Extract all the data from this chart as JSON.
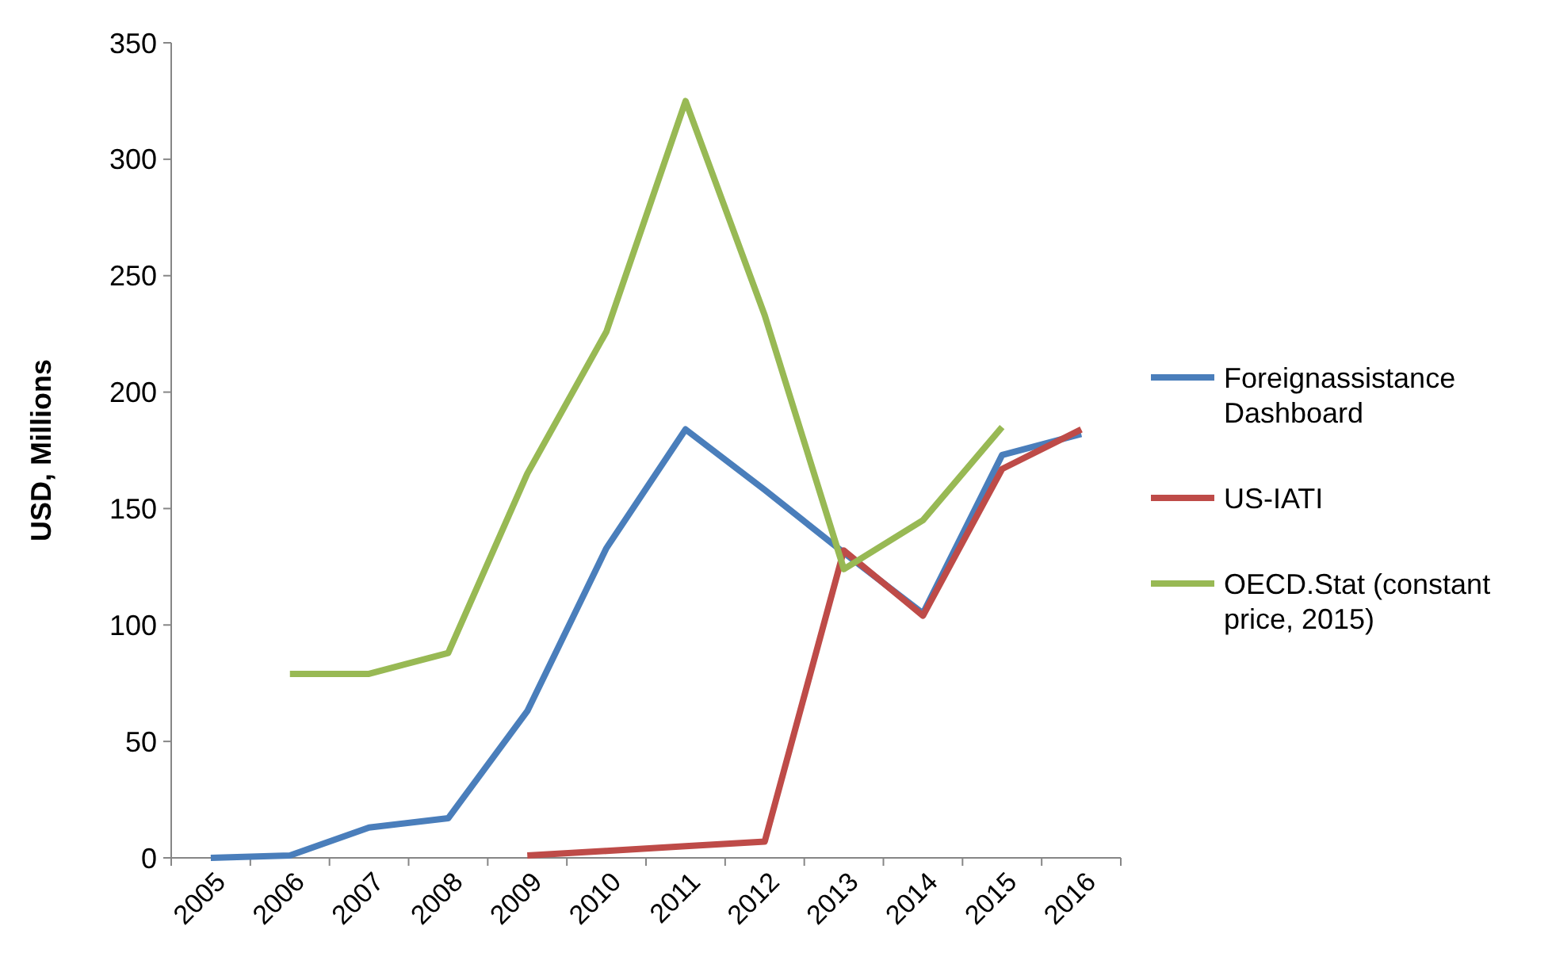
{
  "chart_data": {
    "type": "line",
    "ylabel": "USD, Millions",
    "categories": [
      "2005",
      "2006",
      "2007",
      "2008",
      "2009",
      "2010",
      "2011",
      "2012",
      "2013",
      "2014",
      "2015",
      "2016"
    ],
    "series": [
      {
        "name": "Foreignassistance Dashboard",
        "color": "#4a7ebb",
        "values": [
          0,
          1,
          13,
          17,
          63,
          133,
          184,
          158,
          131,
          105,
          173,
          182
        ]
      },
      {
        "name": "US-IATI",
        "color": "#be4b48",
        "values": [
          null,
          null,
          null,
          null,
          1,
          3,
          5,
          7,
          132,
          104,
          167,
          184
        ]
      },
      {
        "name": "OECD.Stat (constant price, 2015)",
        "color": "#98b954",
        "values": [
          null,
          79,
          79,
          88,
          165,
          226,
          325,
          233,
          124,
          145,
          185,
          null
        ]
      }
    ],
    "ylim": [
      0,
      350
    ],
    "yticks": [
      0,
      50,
      100,
      150,
      200,
      250,
      300,
      350
    ],
    "grid": false,
    "legend": "right",
    "marker": "none",
    "line_style": "solid"
  }
}
